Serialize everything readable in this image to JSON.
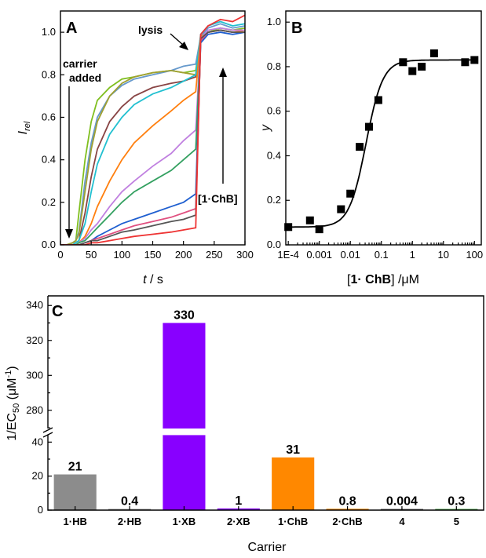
{
  "chart_data": [
    {
      "panel": "A",
      "type": "line",
      "xlabel_var": "t",
      "xlabel_unit": " / s",
      "ylabel_var": "I",
      "ylabel_sub": "rel",
      "xlim": [
        0,
        300
      ],
      "ylim": [
        0,
        1.1
      ],
      "xticks": [
        0,
        50,
        100,
        150,
        200,
        250,
        300
      ],
      "yticks": [
        "0.0",
        "0.2",
        "0.4",
        "0.6",
        "0.8",
        "1.0"
      ],
      "annotations": {
        "carrier_1": "carrier",
        "carrier_2": "added",
        "lysis": "lysis",
        "ratio": "[1·ChB]"
      },
      "series": [
        {
          "color": "#7fbf1f",
          "x": [
            0,
            10,
            20,
            25,
            30,
            40,
            50,
            60,
            80,
            100,
            120,
            150,
            180,
            200,
            220,
            228,
            240,
            260,
            280,
            300
          ],
          "y": [
            0,
            0,
            0.01,
            0.02,
            0.15,
            0.4,
            0.58,
            0.68,
            0.74,
            0.78,
            0.79,
            0.81,
            0.82,
            0.81,
            0.82,
            0.98,
            1.0,
            1.02,
            1.01,
            1.02
          ]
        },
        {
          "color": "#6699cc",
          "x": [
            0,
            10,
            20,
            25,
            30,
            40,
            50,
            60,
            80,
            100,
            120,
            150,
            180,
            200,
            220,
            228,
            240,
            260,
            280,
            300
          ],
          "y": [
            0,
            0,
            0.01,
            0.02,
            0.06,
            0.3,
            0.48,
            0.6,
            0.7,
            0.75,
            0.78,
            0.8,
            0.82,
            0.84,
            0.85,
            0.98,
            1.02,
            1.04,
            1.02,
            1.03
          ]
        },
        {
          "color": "#a0a030",
          "x": [
            0,
            10,
            20,
            25,
            30,
            40,
            50,
            60,
            80,
            100,
            120,
            150,
            180,
            200,
            220,
            228,
            240,
            260,
            280,
            300
          ],
          "y": [
            0,
            0,
            0.01,
            0.02,
            0.05,
            0.25,
            0.45,
            0.58,
            0.7,
            0.76,
            0.79,
            0.81,
            0.82,
            0.81,
            0.8,
            0.98,
            1.0,
            1.01,
            1.0,
            1.0
          ]
        },
        {
          "color": "#884444",
          "x": [
            0,
            10,
            20,
            25,
            30,
            40,
            50,
            60,
            80,
            100,
            120,
            150,
            180,
            200,
            220,
            228,
            240,
            260,
            280,
            300
          ],
          "y": [
            0,
            0,
            0,
            0.01,
            0.02,
            0.15,
            0.32,
            0.45,
            0.58,
            0.65,
            0.7,
            0.74,
            0.76,
            0.77,
            0.79,
            0.97,
            1.0,
            1.01,
            1.0,
            1.0
          ]
        },
        {
          "color": "#22c0d0",
          "x": [
            0,
            10,
            20,
            25,
            30,
            40,
            50,
            60,
            80,
            100,
            120,
            150,
            180,
            200,
            220,
            228,
            240,
            260,
            280,
            300
          ],
          "y": [
            0,
            0,
            0,
            0.01,
            0.02,
            0.1,
            0.25,
            0.38,
            0.52,
            0.6,
            0.66,
            0.71,
            0.74,
            0.77,
            0.8,
            0.99,
            1.03,
            1.05,
            1.03,
            1.04
          ]
        },
        {
          "color": "#ff7f0e",
          "x": [
            0,
            10,
            20,
            25,
            30,
            40,
            50,
            60,
            80,
            100,
            120,
            150,
            180,
            200,
            220,
            228,
            240,
            260,
            280,
            300
          ],
          "y": [
            0,
            0,
            0,
            0,
            0.01,
            0.04,
            0.1,
            0.18,
            0.3,
            0.4,
            0.48,
            0.56,
            0.63,
            0.68,
            0.72,
            0.98,
            1.0,
            1.01,
            1.0,
            1.01
          ]
        },
        {
          "color": "#c080e0",
          "x": [
            0,
            10,
            20,
            25,
            30,
            40,
            50,
            60,
            80,
            100,
            120,
            150,
            180,
            200,
            220,
            228,
            240,
            260,
            280,
            300
          ],
          "y": [
            0,
            0,
            0,
            0,
            0.01,
            0.03,
            0.07,
            0.1,
            0.18,
            0.25,
            0.3,
            0.37,
            0.43,
            0.49,
            0.54,
            0.97,
            1.01,
            1.02,
            1.01,
            1.01
          ]
        },
        {
          "color": "#33a060",
          "x": [
            0,
            10,
            20,
            25,
            30,
            40,
            50,
            60,
            80,
            100,
            120,
            150,
            180,
            200,
            220,
            228,
            240,
            260,
            280,
            300
          ],
          "y": [
            0,
            0,
            0,
            0,
            0.01,
            0.02,
            0.05,
            0.08,
            0.14,
            0.2,
            0.25,
            0.3,
            0.35,
            0.4,
            0.45,
            0.96,
            1.0,
            1.01,
            1.0,
            1.0
          ]
        },
        {
          "color": "#1f5fd0",
          "x": [
            0,
            10,
            20,
            25,
            30,
            40,
            50,
            60,
            80,
            100,
            120,
            150,
            180,
            200,
            220,
            228,
            240,
            260,
            280,
            300
          ],
          "y": [
            0,
            0,
            0,
            0,
            0,
            0.01,
            0.02,
            0.04,
            0.07,
            0.1,
            0.12,
            0.15,
            0.18,
            0.2,
            0.24,
            0.95,
            0.99,
            1.0,
            0.99,
            1.0
          ]
        },
        {
          "color": "#e05080",
          "x": [
            0,
            10,
            20,
            25,
            30,
            40,
            50,
            60,
            80,
            100,
            120,
            150,
            180,
            200,
            220,
            228,
            240,
            260,
            280,
            300
          ],
          "y": [
            0,
            0,
            0,
            0,
            0,
            0.01,
            0.02,
            0.03,
            0.05,
            0.07,
            0.09,
            0.11,
            0.13,
            0.15,
            0.17,
            0.96,
            1.0,
            1.01,
            1.0,
            1.0
          ]
        },
        {
          "color": "#555555",
          "x": [
            0,
            10,
            20,
            25,
            30,
            40,
            50,
            60,
            80,
            100,
            120,
            150,
            180,
            200,
            220,
            228,
            240,
            260,
            280,
            300
          ],
          "y": [
            0,
            0,
            0,
            0,
            0,
            0.01,
            0.02,
            0.02,
            0.04,
            0.06,
            0.07,
            0.09,
            0.11,
            0.12,
            0.14,
            0.97,
            1.0,
            1.01,
            1.0,
            1.0
          ]
        },
        {
          "color": "#ee3333",
          "x": [
            0,
            10,
            20,
            25,
            30,
            40,
            50,
            60,
            80,
            100,
            120,
            150,
            180,
            200,
            220,
            228,
            240,
            260,
            280,
            300
          ],
          "y": [
            0,
            0,
            0,
            0,
            0,
            0,
            0.01,
            0.01,
            0.02,
            0.03,
            0.04,
            0.05,
            0.06,
            0.07,
            0.08,
            0.99,
            1.03,
            1.06,
            1.05,
            1.08
          ]
        }
      ]
    },
    {
      "panel": "B",
      "type": "scatter",
      "xscale": "log",
      "xlim": [
        0.0001,
        100
      ],
      "ylim": [
        0,
        1.0
      ],
      "xticklabels": [
        "1E-4",
        "0.001",
        "0.01",
        "0.1",
        "1",
        "10",
        "100"
      ],
      "yticks": [
        "0.0",
        "0.2",
        "0.4",
        "0.6",
        "0.8",
        "1.0"
      ],
      "xlabel_bold": "1· ChB",
      "xlabel_unit": " /μM",
      "ylabel": "y",
      "points": [
        {
          "x": 0.0001,
          "y": 0.08
        },
        {
          "x": 0.0005,
          "y": 0.11
        },
        {
          "x": 0.001,
          "y": 0.07
        },
        {
          "x": 0.005,
          "y": 0.16
        },
        {
          "x": 0.01,
          "y": 0.23
        },
        {
          "x": 0.02,
          "y": 0.44
        },
        {
          "x": 0.04,
          "y": 0.53
        },
        {
          "x": 0.08,
          "y": 0.65
        },
        {
          "x": 0.5,
          "y": 0.82
        },
        {
          "x": 1,
          "y": 0.78
        },
        {
          "x": 2,
          "y": 0.8
        },
        {
          "x": 5,
          "y": 0.86
        },
        {
          "x": 50,
          "y": 0.82
        },
        {
          "x": 100,
          "y": 0.83
        }
      ],
      "fit": {
        "bottom": 0.08,
        "top": 0.83,
        "ec50": 0.032,
        "hill": 1.6
      }
    },
    {
      "panel": "C",
      "type": "bar",
      "xlabel": "Carrier",
      "ylabel_base": "1/EC",
      "ylabel_sub": "50",
      "ylabel_unit_pre": " (μM",
      "ylabel_sup": "-1",
      "ylabel_unit_post": ")",
      "lower_ticks": [
        0,
        20,
        40
      ],
      "upper_ticks": [
        280,
        300,
        320,
        340
      ],
      "categories": [
        "1·HB",
        "2·HB",
        "1·XB",
        "2·XB",
        "1·ChB",
        "2·ChB",
        "4",
        "5"
      ],
      "values": [
        21,
        0.4,
        330,
        1,
        31,
        0.8,
        0.004,
        0.3
      ],
      "value_labels": [
        "21",
        "0.4",
        "330",
        "1",
        "31",
        "0.8",
        "0.004",
        "0.3"
      ],
      "colors": [
        "#8c8c8c",
        "#8c8c8c",
        "#8800ff",
        "#8800ff",
        "#ff8800",
        "#ff8800",
        "#555555",
        "#3a9b3a"
      ]
    }
  ]
}
